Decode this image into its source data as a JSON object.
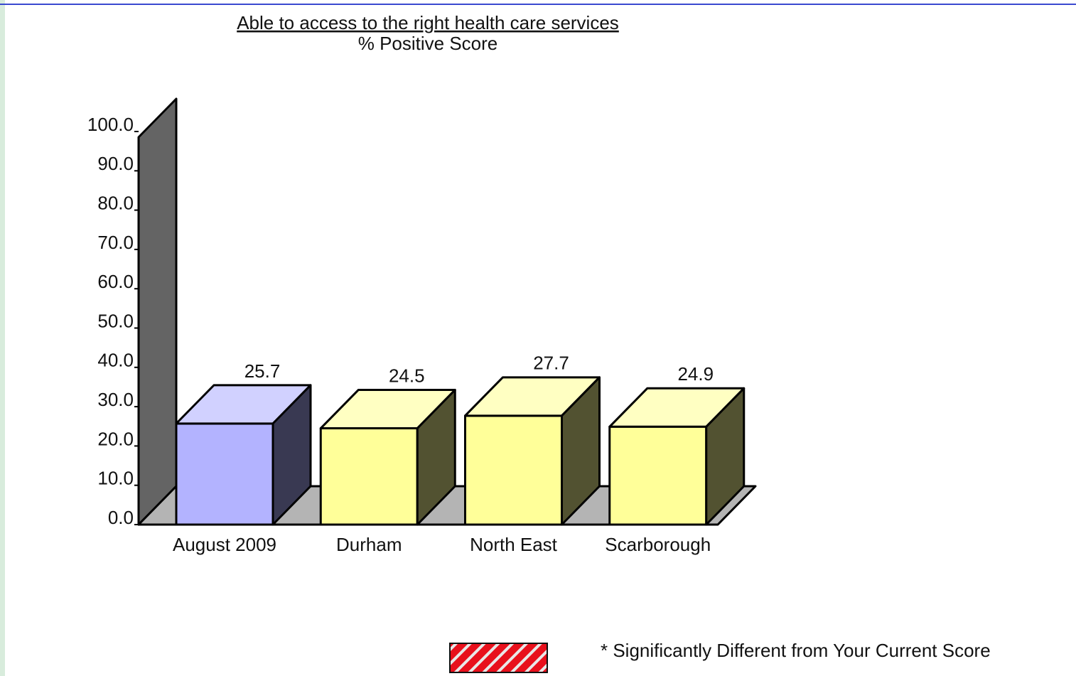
{
  "chart_data": {
    "type": "bar3d",
    "title": "Able to access to the right health care services",
    "subtitle": "% Positive Score",
    "categories": [
      "August 2009",
      "Durham",
      "North East",
      "Scarborough"
    ],
    "values": [
      25.7,
      24.5,
      27.7,
      24.9
    ],
    "colors": [
      "#b3b3ff",
      "#ffff99",
      "#ffff99",
      "#ffff99"
    ],
    "ylim": [
      0,
      100
    ],
    "yticks": [
      {
        "value": 0,
        "label": "0.0"
      },
      {
        "value": 10,
        "label": "10.0"
      },
      {
        "value": 20,
        "label": "20.0"
      },
      {
        "value": 30,
        "label": "30.0"
      },
      {
        "value": 40,
        "label": "40.0"
      },
      {
        "value": 50,
        "label": "50.0"
      },
      {
        "value": 60,
        "label": "60.0"
      },
      {
        "value": 70,
        "label": "70.0"
      },
      {
        "value": 80,
        "label": "80.0"
      },
      {
        "value": 90,
        "label": "90.0"
      },
      {
        "value": 100,
        "label": "100.0"
      }
    ],
    "legend_note": "* Significantly Different from Your Current Score"
  }
}
